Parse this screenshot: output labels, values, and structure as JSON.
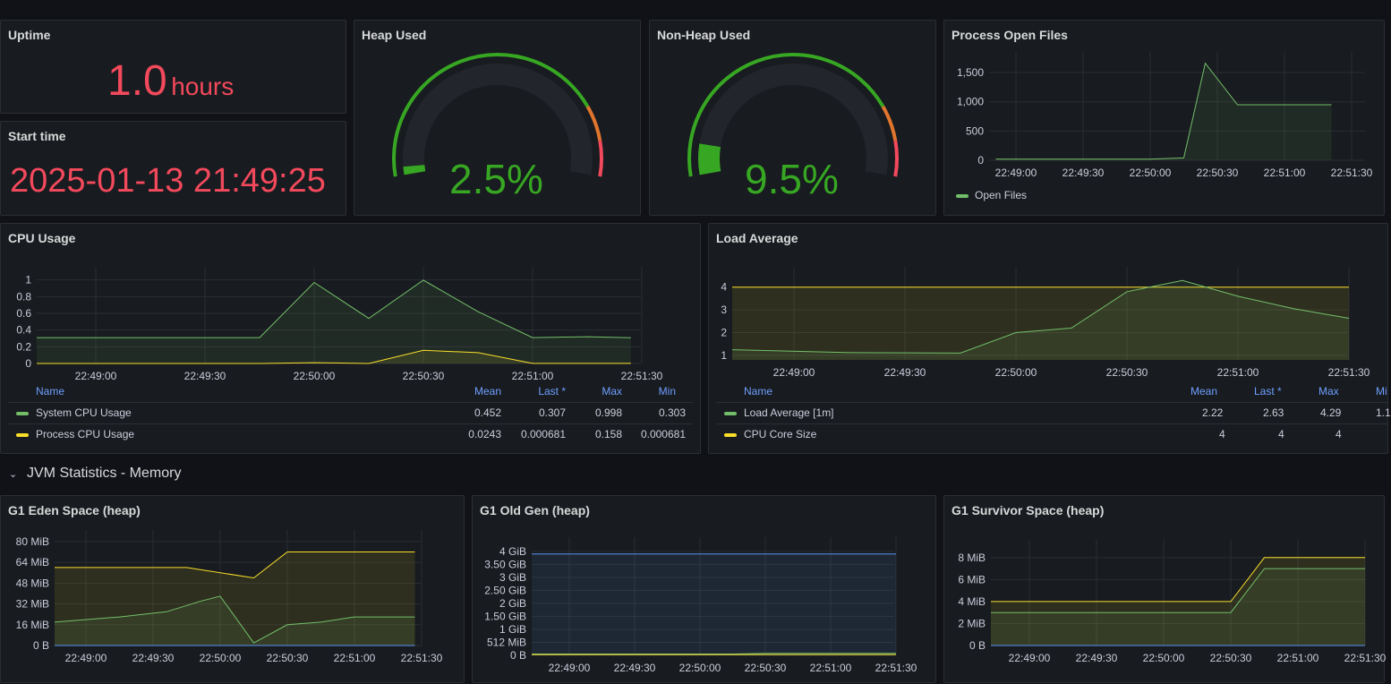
{
  "colors": {
    "green": "#73bf69",
    "yellow": "#fade2a",
    "blue": "#5794f2",
    "red": "#f2495c",
    "gauge_green": "#37a723",
    "orange": "#e0752d"
  },
  "uptime": {
    "title": "Uptime",
    "value": "1.0",
    "unit": "hours"
  },
  "start_time": {
    "title": "Start time",
    "value": "2025-01-13 21:49:25"
  },
  "heap": {
    "title": "Heap Used",
    "value": "2.5%",
    "fraction": 0.025
  },
  "nonheap": {
    "title": "Non-Heap Used",
    "value": "9.5%",
    "fraction": 0.095
  },
  "open_files": {
    "title": "Process Open Files",
    "legend": "Open Files"
  },
  "cpu": {
    "title": "CPU Usage",
    "legend_headers": {
      "name": "Name",
      "mean": "Mean",
      "last": "Last *",
      "max": "Max",
      "min": "Min"
    },
    "rows": [
      {
        "name": "System CPU Usage",
        "mean": "0.452",
        "last": "0.307",
        "max": "0.998",
        "min": "0.303"
      },
      {
        "name": "Process CPU Usage",
        "mean": "0.0243",
        "last": "0.000681",
        "max": "0.158",
        "min": "0.000681"
      }
    ]
  },
  "load": {
    "title": "Load Average",
    "legend_headers": {
      "name": "Name",
      "mean": "Mean",
      "last": "Last *",
      "max": "Max",
      "min": "Mi"
    },
    "rows": [
      {
        "name": "Load Average [1m]",
        "mean": "2.22",
        "last": "2.63",
        "max": "4.29",
        "min": "1.1"
      },
      {
        "name": "CPU Core Size",
        "mean": "4",
        "last": "4",
        "max": "4",
        "min": ""
      }
    ]
  },
  "row": {
    "title": "JVM Statistics - Memory",
    "chevron": "⌄"
  },
  "eden": {
    "title": "G1 Eden Space (heap)"
  },
  "oldgen": {
    "title": "G1 Old Gen (heap)"
  },
  "survivor": {
    "title": "G1 Survivor Space (heap)"
  },
  "chart_data": [
    {
      "id": "open_files",
      "type": "area",
      "x": [
        "22:49:00",
        "22:49:30",
        "22:50:00",
        "22:50:30",
        "22:51:00",
        "22:51:30"
      ],
      "ylim": [
        0,
        1700
      ],
      "yticks": [
        "0",
        "500",
        "1,000",
        "1,500"
      ],
      "series": [
        {
          "name": "Open Files",
          "color": "green",
          "points": [
            [
              -0.3,
              20
            ],
            [
              0.3,
              20
            ],
            [
              1,
              20
            ],
            [
              2,
              20
            ],
            [
              2.5,
              40
            ],
            [
              2.82,
              1660
            ],
            [
              3.3,
              950
            ],
            [
              4,
              950
            ],
            [
              4.7,
              950
            ]
          ]
        }
      ]
    },
    {
      "id": "cpu",
      "type": "area",
      "x": [
        "22:49:00",
        "22:49:30",
        "22:50:00",
        "22:50:30",
        "22:51:00",
        "22:51:30"
      ],
      "ylim": [
        0,
        1.05
      ],
      "yticks": [
        "0",
        "0.2",
        "0.4",
        "0.6",
        "0.8",
        "1"
      ],
      "series": [
        {
          "name": "System CPU Usage",
          "color": "green",
          "points": [
            [
              -0.6,
              0.31
            ],
            [
              0.5,
              0.31
            ],
            [
              1.5,
              0.31
            ],
            [
              2,
              0.97
            ],
            [
              2.5,
              0.54
            ],
            [
              3,
              0.998
            ],
            [
              3.5,
              0.62
            ],
            [
              4,
              0.31
            ],
            [
              4.5,
              0.32
            ],
            [
              4.9,
              0.307
            ]
          ]
        },
        {
          "name": "Process CPU Usage",
          "color": "yellow",
          "points": [
            [
              -0.6,
              0
            ],
            [
              1.5,
              0
            ],
            [
              2,
              0.01
            ],
            [
              2.5,
              0
            ],
            [
              3,
              0.158
            ],
            [
              3.5,
              0.13
            ],
            [
              4,
              0.001
            ],
            [
              4.9,
              0.000681
            ]
          ]
        }
      ]
    },
    {
      "id": "load",
      "type": "area",
      "x": [
        "22:49:00",
        "22:49:30",
        "22:50:00",
        "22:50:30",
        "22:51:00",
        "22:51:30"
      ],
      "ylim": [
        0.8,
        4.5
      ],
      "yticks": [
        "1",
        "2",
        "3",
        "4"
      ],
      "series": [
        {
          "name": "CPU Core Size",
          "color": "yellow",
          "points": [
            [
              -0.6,
              4
            ],
            [
              5.0,
              4
            ]
          ]
        },
        {
          "name": "Load Average [1m]",
          "color": "green",
          "points": [
            [
              -0.6,
              1.25
            ],
            [
              0.5,
              1.12
            ],
            [
              1.5,
              1.1
            ],
            [
              2,
              2
            ],
            [
              2.5,
              2.2
            ],
            [
              3,
              3.8
            ],
            [
              3.5,
              4.29
            ],
            [
              4,
              3.6
            ],
            [
              4.5,
              3.05
            ],
            [
              5.0,
              2.63
            ]
          ]
        }
      ]
    },
    {
      "id": "eden",
      "type": "area",
      "x": [
        "22:49:00",
        "22:49:30",
        "22:50:00",
        "22:50:30",
        "22:51:00",
        "22:51:30"
      ],
      "ylim": [
        0,
        82
      ],
      "yticks": [
        "0 B",
        "16 MiB",
        "32 MiB",
        "48 MiB",
        "64 MiB",
        "80 MiB"
      ],
      "series": [
        {
          "name": "",
          "color": "yellow",
          "points": [
            [
              -0.6,
              60
            ],
            [
              1.5,
              60
            ],
            [
              2.5,
              52
            ],
            [
              3,
              72
            ],
            [
              4,
              72
            ],
            [
              4.9,
              72
            ]
          ]
        },
        {
          "name": "",
          "color": "green",
          "points": [
            [
              -0.6,
              18
            ],
            [
              0.5,
              22
            ],
            [
              1.2,
              26
            ],
            [
              1.7,
              34
            ],
            [
              2,
              38
            ],
            [
              2.5,
              2
            ],
            [
              3,
              16
            ],
            [
              3.5,
              18
            ],
            [
              4,
              22
            ],
            [
              4.9,
              22
            ]
          ]
        },
        {
          "name": "",
          "color": "blue",
          "points": [
            [
              -0.6,
              0
            ],
            [
              4.9,
              0
            ]
          ]
        }
      ]
    },
    {
      "id": "oldgen",
      "type": "area",
      "x": [
        "22:49:00",
        "22:49:30",
        "22:50:00",
        "22:50:30",
        "22:51:00",
        "22:51:30"
      ],
      "ylim": [
        0,
        4.2
      ],
      "yticks": [
        "0 B",
        "512 MiB",
        "1 GiB",
        "1.50 GiB",
        "2 GiB",
        "2.50 GiB",
        "3 GiB",
        "3.50 GiB",
        "4 GiB"
      ],
      "series": [
        {
          "name": "",
          "color": "blue",
          "points": [
            [
              -0.6,
              3.9
            ],
            [
              5.0,
              3.9
            ]
          ]
        },
        {
          "name": "",
          "color": "green",
          "points": [
            [
              -0.6,
              0.05
            ],
            [
              2.5,
              0.05
            ],
            [
              3,
              0.08
            ],
            [
              5.0,
              0.08
            ]
          ]
        },
        {
          "name": "",
          "color": "yellow",
          "points": [
            [
              -0.6,
              0.03
            ],
            [
              5.0,
              0.03
            ]
          ]
        }
      ]
    },
    {
      "id": "survivor",
      "type": "area",
      "x": [
        "22:49:00",
        "22:49:30",
        "22:50:00",
        "22:50:30",
        "22:51:00",
        "22:51:30"
      ],
      "ylim": [
        0,
        8.8
      ],
      "yticks": [
        "0 B",
        "2 MiB",
        "4 MiB",
        "6 MiB",
        "8 MiB"
      ],
      "series": [
        {
          "name": "",
          "color": "yellow",
          "points": [
            [
              -0.6,
              4
            ],
            [
              3,
              4
            ],
            [
              3.5,
              8
            ],
            [
              5.0,
              8
            ]
          ]
        },
        {
          "name": "",
          "color": "green",
          "points": [
            [
              -0.6,
              3
            ],
            [
              3,
              3
            ],
            [
              3.5,
              7
            ],
            [
              5.0,
              7
            ]
          ]
        },
        {
          "name": "",
          "color": "blue",
          "points": [
            [
              -0.6,
              0
            ],
            [
              5.0,
              0
            ]
          ]
        }
      ]
    }
  ]
}
